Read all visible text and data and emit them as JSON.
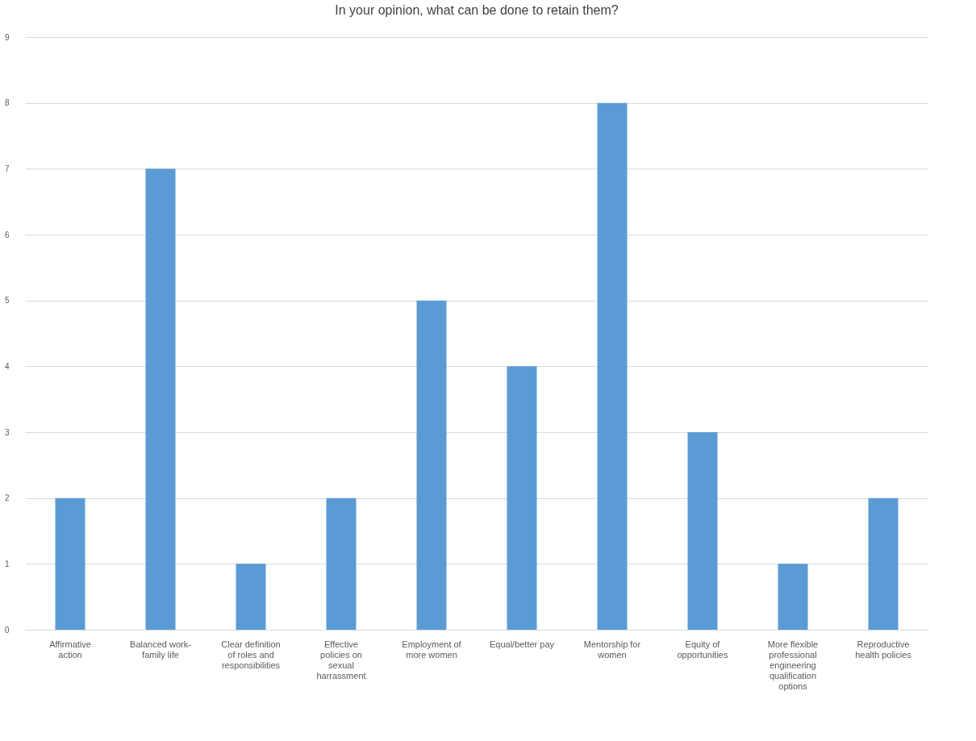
{
  "chart_data": {
    "type": "bar",
    "title": "In your opinion, what can be done to retain them?",
    "categories": [
      "Affirmative action",
      "Balanced work-family life",
      "Clear definition of roles and responsibilities",
      "Effective policies on sexual harrassment",
      "Employment of more women",
      "Equal/better pay",
      "Mentorship for women",
      "Equity of opportunities",
      "More flexible professional engineering qualification options",
      "Reproductive health policies"
    ],
    "values": [
      2,
      7,
      1,
      2,
      5,
      4,
      8,
      3,
      1,
      2
    ],
    "color": "#5b9bd5",
    "ylim": [
      0,
      9
    ],
    "yticks": [
      0,
      1,
      2,
      3,
      4,
      5,
      6,
      7,
      8,
      9
    ],
    "grid": "y"
  }
}
